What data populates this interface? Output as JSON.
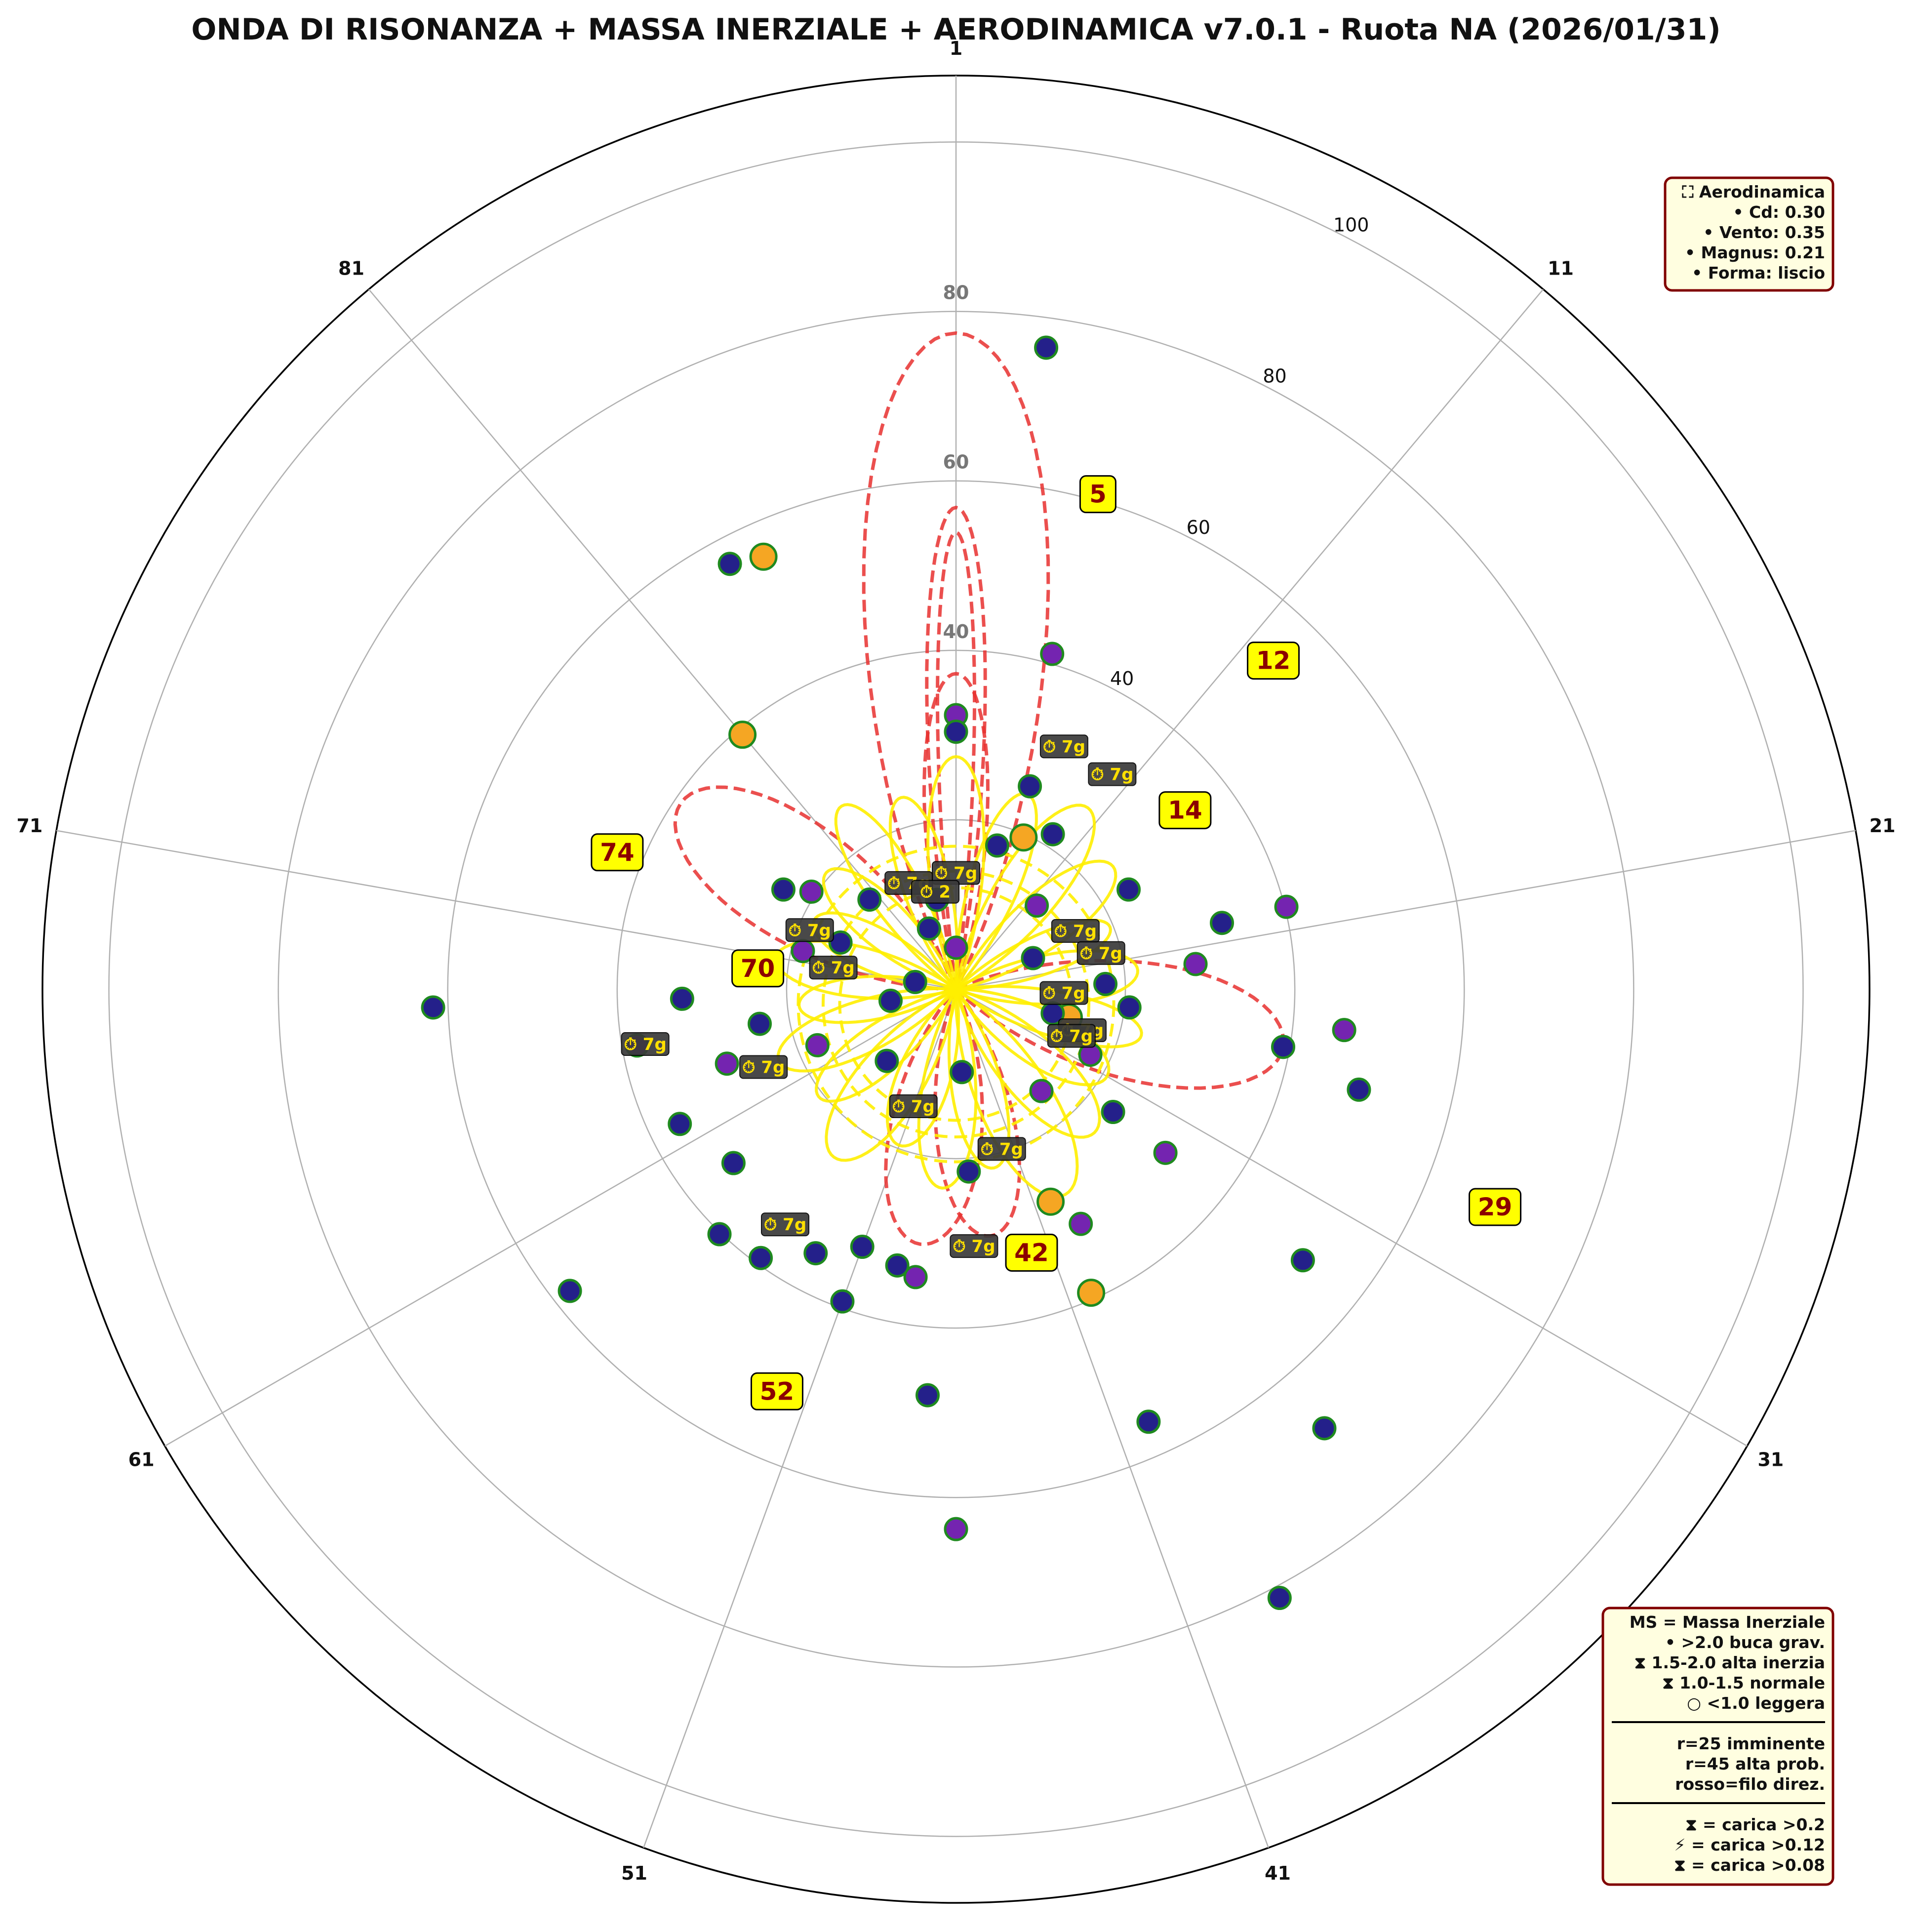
{
  "chart_data": {
    "type": "polar-scatter",
    "title": "ONDA DI RISONANZA + MASSA INERZIALE + AERODINAMICA v7.0.1 - Ruota NA (2026/01/31)",
    "angle_labels": [
      "1",
      "11",
      "21",
      "31",
      "41",
      "51",
      "61",
      "71",
      "81"
    ],
    "radial_ticks": [
      "40",
      "60",
      "80",
      "100"
    ],
    "inner_ticks": [
      "40",
      "60",
      "80"
    ],
    "rmax": 110,
    "grid": true,
    "legend_placement": "bottom-right",
    "predictions": [
      {
        "label": "5",
        "number": 5,
        "r": 62
      },
      {
        "label": "12",
        "number": 12,
        "r": 55
      },
      {
        "label": "14",
        "number": 14,
        "r": 35
      },
      {
        "label": "29",
        "number": 29,
        "r": 70
      },
      {
        "label": "42",
        "number": 42,
        "r": 33
      },
      {
        "label": "52",
        "number": 52,
        "r": 53
      },
      {
        "label": "70",
        "number": 70,
        "r": 24
      },
      {
        "label": "74",
        "number": 74,
        "r": 44
      }
    ],
    "tags": [
      {
        "label": "⏱ 7g",
        "number": 7,
        "r": 32
      },
      {
        "label": "⏱ 7g",
        "number": 10,
        "r": 32
      },
      {
        "label": "⏱ 7g",
        "number": 1,
        "r": 14
      },
      {
        "label": "⏱ 7g",
        "number": 17,
        "r": 16
      },
      {
        "label": "⏱ 7g",
        "number": 20,
        "r": 18
      },
      {
        "label": "⏱ 7g",
        "number": 24,
        "r": 13
      },
      {
        "label": "⏱ 7g",
        "number": 28,
        "r": 16
      },
      {
        "label": "⏱ 7g",
        "number": 29,
        "r": 15
      },
      {
        "label": "⏱ 7g",
        "number": 42,
        "r": 20
      },
      {
        "label": "⏱ 7g",
        "number": 45,
        "r": 31
      },
      {
        "label": "⏱ 7g",
        "number": 51,
        "r": 15
      },
      {
        "label": "⏱ 7g",
        "number": 55,
        "r": 35
      },
      {
        "label": "⏱ 7g",
        "number": 63,
        "r": 25
      },
      {
        "label": "⏱ 7g",
        "number": 66,
        "r": 38
      },
      {
        "label": "⏱ 7g",
        "number": 71,
        "r": 15
      },
      {
        "label": "⏱ 7g",
        "number": 74,
        "r": 19
      },
      {
        "label": "⏱ 7g",
        "number": 85,
        "r": 14
      },
      {
        "label": "⏱ 2",
        "number": 88,
        "r": 12
      }
    ],
    "points": [
      {
        "n": 3,
        "r": 78,
        "c": "blue"
      },
      {
        "n": 5,
        "r": 42,
        "c": "purple"
      },
      {
        "n": 1,
        "r": 33,
        "c": "purple"
      },
      {
        "n": 1,
        "r": 31,
        "c": "blue"
      },
      {
        "n": 6,
        "r": 26,
        "c": "blue"
      },
      {
        "n": 9,
        "r": 22,
        "c": "blue"
      },
      {
        "n": 7,
        "r": 20,
        "c": "orange"
      },
      {
        "n": 85,
        "r": 57,
        "c": "orange"
      },
      {
        "n": 84,
        "r": 58,
        "c": "blue"
      },
      {
        "n": 81,
        "r": 40,
        "c": "orange"
      },
      {
        "n": 20,
        "r": 41,
        "c": "purple"
      },
      {
        "n": 25,
        "r": 47,
        "c": "purple"
      },
      {
        "n": 27,
        "r": 50,
        "c": "blue"
      },
      {
        "n": 26,
        "r": 40,
        "c": "blue"
      },
      {
        "n": 22,
        "r": 29,
        "c": "purple"
      },
      {
        "n": 20,
        "r": 33,
        "c": "blue"
      },
      {
        "n": 33,
        "r": 53,
        "c": "blue"
      },
      {
        "n": 36,
        "r": 69,
        "c": "blue"
      },
      {
        "n": 39,
        "r": 83,
        "c": "blue"
      },
      {
        "n": 40,
        "r": 57,
        "c": "blue"
      },
      {
        "n": 46,
        "r": 65,
        "c": "purple"
      },
      {
        "n": 47,
        "r": 49,
        "c": "blue"
      },
      {
        "n": 40,
        "r": 40,
        "c": "orange"
      },
      {
        "n": 40,
        "r": 28,
        "c": "orange"
      },
      {
        "n": 33,
        "r": 32,
        "c": "purple"
      },
      {
        "n": 33,
        "r": 24,
        "c": "blue"
      },
      {
        "n": 39,
        "r": 32,
        "c": "purple"
      },
      {
        "n": 27,
        "r": 14,
        "c": "orange"
      },
      {
        "n": 49,
        "r": 34,
        "c": "blue"
      },
      {
        "n": 48,
        "r": 35,
        "c": "purple"
      },
      {
        "n": 51,
        "r": 40,
        "c": "blue"
      },
      {
        "n": 55,
        "r": 40,
        "c": "blue"
      },
      {
        "n": 57,
        "r": 41,
        "c": "blue"
      },
      {
        "n": 59,
        "r": 34,
        "c": "blue"
      },
      {
        "n": 59,
        "r": 59,
        "c": "blue"
      },
      {
        "n": 62,
        "r": 37,
        "c": "blue"
      },
      {
        "n": 64,
        "r": 29,
        "c": "purple"
      },
      {
        "n": 66,
        "r": 39,
        "c": "purple"
      },
      {
        "n": 68,
        "r": 33,
        "c": "blue"
      },
      {
        "n": 68,
        "r": 63,
        "c": "blue"
      },
      {
        "n": 66,
        "r": 24,
        "c": "blue"
      },
      {
        "n": 63,
        "r": 18,
        "c": "purple"
      },
      {
        "n": 72,
        "r": 19,
        "c": "purple"
      },
      {
        "n": 76,
        "r": 24,
        "c": "blue"
      },
      {
        "n": 77,
        "r": 21,
        "c": "purple"
      },
      {
        "n": 80,
        "r": 15,
        "c": "blue"
      },
      {
        "n": 85,
        "r": 8,
        "c": "blue"
      },
      {
        "n": 88,
        "r": 11,
        "c": "blue"
      },
      {
        "n": 74,
        "r": 15,
        "c": "blue"
      },
      {
        "n": 57,
        "r": 12,
        "c": "blue"
      },
      {
        "n": 45,
        "r": 10,
        "c": "blue"
      },
      {
        "n": 45,
        "r": 22,
        "c": "blue"
      },
      {
        "n": 36,
        "r": 16,
        "c": "purple"
      },
      {
        "n": 27,
        "r": 12,
        "c": "blue"
      },
      {
        "n": 23,
        "r": 18,
        "c": "blue"
      },
      {
        "n": 18,
        "r": 10,
        "c": "blue"
      },
      {
        "n": 12,
        "r": 14,
        "c": "purple"
      },
      {
        "n": 66,
        "r": 8,
        "c": "blue"
      },
      {
        "n": 71,
        "r": 5,
        "c": "blue"
      },
      {
        "n": 1,
        "r": 5,
        "c": "purple"
      },
      {
        "n": 5,
        "r": 18,
        "c": "blue"
      },
      {
        "n": 25,
        "r": 21,
        "c": "blue"
      },
      {
        "n": 30,
        "r": 18,
        "c": "purple"
      },
      {
        "n": 51,
        "r": 33,
        "c": "blue"
      },
      {
        "n": 53,
        "r": 36,
        "c": "blue"
      },
      {
        "n": 16,
        "r": 24,
        "c": "blue"
      }
    ],
    "red_petals": [
      {
        "center": 1,
        "r": 79,
        "half": 7
      },
      {
        "center": 1,
        "r": 58,
        "half": 3
      },
      {
        "center": 1,
        "r": 55,
        "half": 2
      },
      {
        "center": 1,
        "r": 38,
        "half": 5
      },
      {
        "center": 26,
        "r": 40,
        "half": 9
      },
      {
        "center": 77,
        "r": 40,
        "half": 9
      },
      {
        "center": 44,
        "r": 30,
        "half": 8
      },
      {
        "center": 48,
        "r": 31,
        "half": 9
      }
    ],
    "yellow_loops": [
      {
        "center": 1,
        "r": 28,
        "half": 6
      },
      {
        "center": 6,
        "r": 25,
        "half": 6
      },
      {
        "center": 10,
        "r": 27,
        "half": 7
      },
      {
        "center": 14,
        "r": 24,
        "half": 7
      },
      {
        "center": 18,
        "r": 20,
        "half": 6
      },
      {
        "center": 22,
        "r": 22,
        "half": 7
      },
      {
        "center": 27,
        "r": 23,
        "half": 6
      },
      {
        "center": 31,
        "r": 21,
        "half": 8
      },
      {
        "center": 35,
        "r": 24,
        "half": 8
      },
      {
        "center": 39,
        "r": 28,
        "half": 8
      },
      {
        "center": 43,
        "r": 22,
        "half": 7
      },
      {
        "center": 47,
        "r": 24,
        "half": 7
      },
      {
        "center": 51,
        "r": 20,
        "half": 8
      },
      {
        "center": 55,
        "r": 25,
        "half": 8
      },
      {
        "center": 59,
        "r": 21,
        "half": 7
      },
      {
        "center": 63,
        "r": 23,
        "half": 7
      },
      {
        "center": 67,
        "r": 19,
        "half": 7
      },
      {
        "center": 71,
        "r": 22,
        "half": 7
      },
      {
        "center": 75,
        "r": 19,
        "half": 7
      },
      {
        "center": 79,
        "r": 21,
        "half": 7
      },
      {
        "center": 83,
        "r": 26,
        "half": 6
      },
      {
        "center": 87,
        "r": 24,
        "half": 6
      }
    ],
    "yellow_rings": [
      14,
      16,
      19
    ]
  },
  "info_box": {
    "lines": [
      "⛶ Aerodinamica",
      "• Cd: 0.30",
      "• Vento: 0.35",
      "• Magnus: 0.21",
      "• Forma: liscio"
    ]
  },
  "legend_box": {
    "lines": [
      "MS = Massa Inerziale",
      "• >2.0 buca grav.",
      "⧗ 1.5-2.0 alta inerzia",
      "⧗ 1.0-1.5 normale",
      "○ <1.0 leggera",
      "",
      "r=25 imminente",
      "r=45 alta prob.",
      "rosso=filo direz.",
      "",
      "⧗ = carica >0.2",
      "⚡ = carica >0.12",
      "⧗ = carica >0.08"
    ]
  },
  "colors": {
    "dot_blue": "#24208a",
    "dot_purple": "#7424b0",
    "dot_orange": "#f5a623",
    "dot_edge": "#1f8a1f",
    "red_line": "#e8302f",
    "yellow_line": "#ffee00",
    "pred_box": "#ffff00",
    "tag_box": "#3a3a3a",
    "box_fill": "#fffee0",
    "box_edge": "#800000"
  }
}
